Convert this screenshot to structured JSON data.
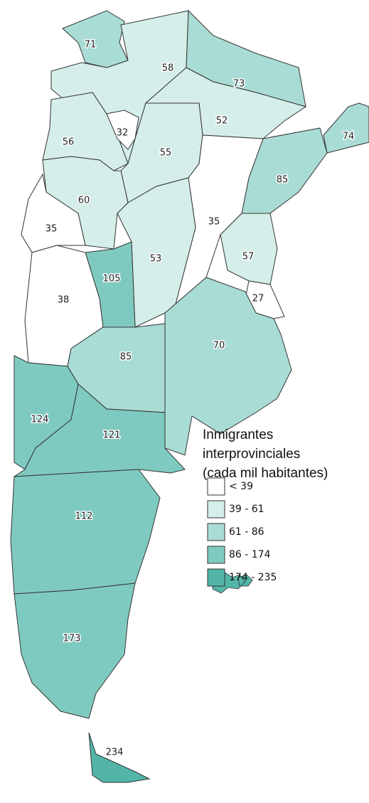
{
  "legend": {
    "title": [
      "Inmigrantes",
      "interprovinciales",
      "(cada mil habitantes)"
    ],
    "items": [
      "< 39",
      "39 - 61",
      "61 - 86",
      "86 - 174",
      "174 - 235"
    ],
    "breaks": [
      39,
      61,
      86,
      174,
      235
    ],
    "colors": [
      "#ffffff",
      "#d5eeea",
      "#a9dcd5",
      "#7fcac0",
      "#52b5a8"
    ]
  },
  "regions": [
    {
      "value": 71
    },
    {
      "value": 58
    },
    {
      "value": 73
    },
    {
      "value": 52
    },
    {
      "value": 74
    },
    {
      "value": 56
    },
    {
      "value": 32
    },
    {
      "value": 55
    },
    {
      "value": 85
    },
    {
      "value": 60
    },
    {
      "value": 35
    },
    {
      "value": 35
    },
    {
      "value": 53
    },
    {
      "value": 57
    },
    {
      "value": 105
    },
    {
      "value": 38
    },
    {
      "value": 27
    },
    {
      "value": 85
    },
    {
      "value": 70
    },
    {
      "value": 124
    },
    {
      "value": 121
    },
    {
      "value": 112
    },
    {
      "value": 173
    },
    {
      "value": 234
    }
  ]
}
